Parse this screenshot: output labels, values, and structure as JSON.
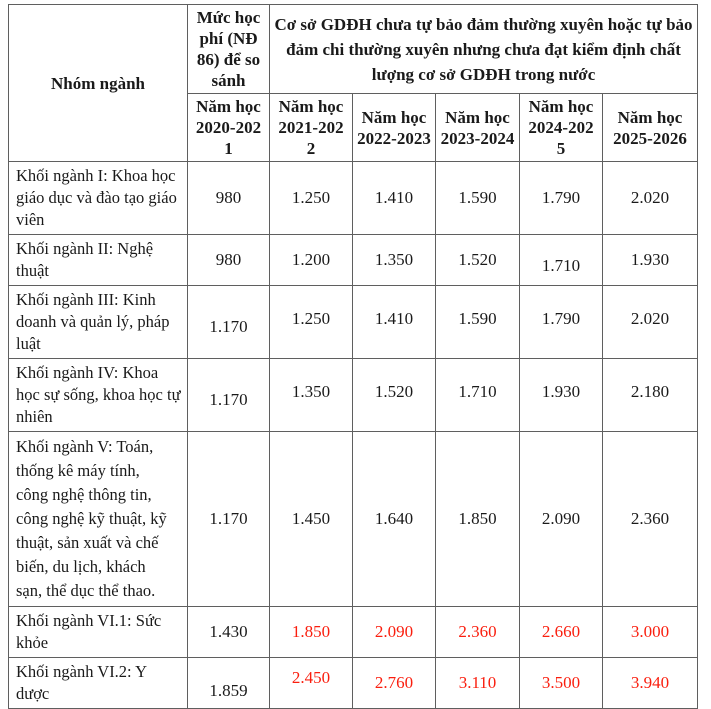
{
  "table": {
    "header": {
      "group_label": "Nhóm ngành",
      "nd86_label": "Mức học\nphí (NĐ\n86) để so\nsánh",
      "span_label": "Cơ sở GDĐH chưa tự bảo đảm thường xuyên hoặc tự bảo\nđảm chi thường xuyên nhưng chưa đạt kiểm định chất\nlượng cơ sở GDĐH trong nước",
      "nd86_year": "Năm học\n2020-202\n1",
      "years": [
        "Năm học\n2021-202\n2",
        "Năm học\n2022-2023",
        "Năm học\n2023-2024",
        "Năm học\n2024-202\n5",
        "Năm học\n2025-2026"
      ]
    },
    "rows": [
      {
        "label": "Khối ngành I: Khoa học\ngiáo dục và đào tạo giáo\nviên",
        "nd86": "980",
        "values": [
          "1.250",
          "1.410",
          "1.590",
          "1.790",
          "2.020"
        ],
        "highlight": false
      },
      {
        "label": "Khối ngành II: Nghệ\nthuật",
        "nd86": "980",
        "values": [
          "1.200",
          "1.350",
          "1.520",
          "1.710",
          "1.930"
        ],
        "highlight": false
      },
      {
        "label": "Khối ngành III: Kinh\ndoanh và quản lý, pháp\nluật",
        "nd86": "1.170",
        "values": [
          "1.250",
          "1.410",
          "1.590",
          "1.790",
          "2.020"
        ],
        "highlight": false
      },
      {
        "label": "Khối ngành IV: Khoa\nhọc sự sống, khoa học tự\nnhiên",
        "nd86": "1.170",
        "values": [
          "1.350",
          "1.520",
          "1.710",
          "1.930",
          "2.180"
        ],
        "highlight": false
      },
      {
        "label": "Khối ngành V: Toán,\nthống kê máy tính,\ncông nghệ thông tin,\ncông nghệ kỹ thuật, kỹ\nthuật, sản xuất và chế\nbiến, du lịch, khách\nsạn, thể dục thể thao.",
        "nd86": "1.170",
        "values": [
          "1.450",
          "1.640",
          "1.850",
          "2.090",
          "2.360"
        ],
        "highlight": false
      },
      {
        "label": "Khối ngành VI.1: Sức\nkhỏe",
        "nd86": "1.430",
        "values": [
          "1.850",
          "2.090",
          "2.360",
          "2.660",
          "3.000"
        ],
        "highlight": true
      },
      {
        "label": "Khối ngành VI.2: Y\ndược",
        "nd86": "1.859",
        "values": [
          "2.450",
          "2.760",
          "3.110",
          "3.500",
          "3.940"
        ],
        "highlight": true
      }
    ],
    "colors": {
      "highlight": "#fa1e0e",
      "text": "#1a1a1a",
      "border": "#5f5f5f"
    }
  }
}
